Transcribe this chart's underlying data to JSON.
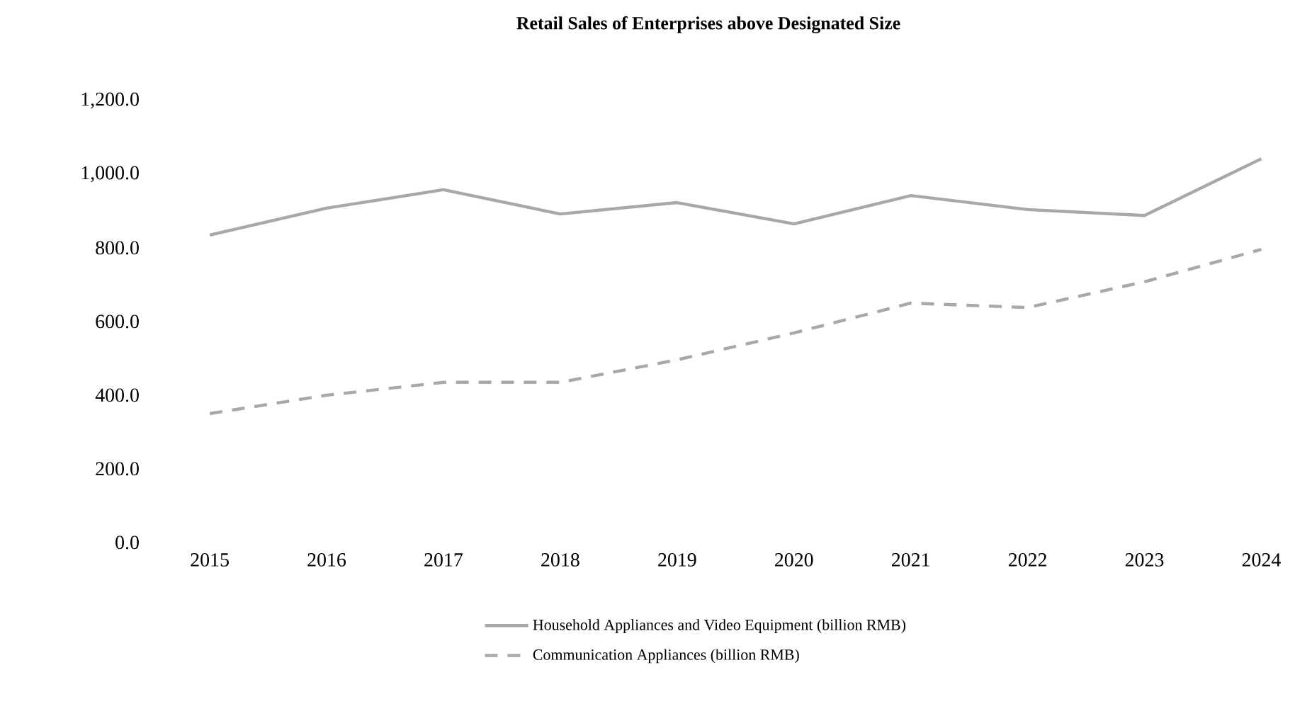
{
  "chart_data": {
    "type": "line",
    "title": "Retail Sales of Enterprises above Designated Size",
    "categories": [
      "2015",
      "2016",
      "2017",
      "2018",
      "2019",
      "2020",
      "2021",
      "2022",
      "2023",
      "2024"
    ],
    "series": [
      {
        "name": "Household Appliances and Video Equipment (billion RMB)",
        "color": "#a8a8a8",
        "line_style": "solid",
        "values": [
          835,
          908,
          958,
          892,
          923,
          865,
          942,
          904,
          888,
          1042
        ]
      },
      {
        "name": "Communication Appliances (billion RMB)",
        "color": "#a8a8a8",
        "line_style": "dashed",
        "values": [
          350,
          400,
          435,
          435,
          496,
          569,
          650,
          638,
          708,
          796
        ]
      }
    ],
    "ylim": [
      0,
      1200
    ],
    "yticks": [
      {
        "value": 0,
        "label": "0.0"
      },
      {
        "value": 200,
        "label": "200.0"
      },
      {
        "value": 400,
        "label": "400.0"
      },
      {
        "value": 600,
        "label": "600.0"
      },
      {
        "value": 800,
        "label": "800.0"
      },
      {
        "value": 1000,
        "label": "1,000.0"
      },
      {
        "value": 1200,
        "label": "1,200.0"
      }
    ],
    "grid": false,
    "legend": "bottom",
    "marker": "none"
  }
}
